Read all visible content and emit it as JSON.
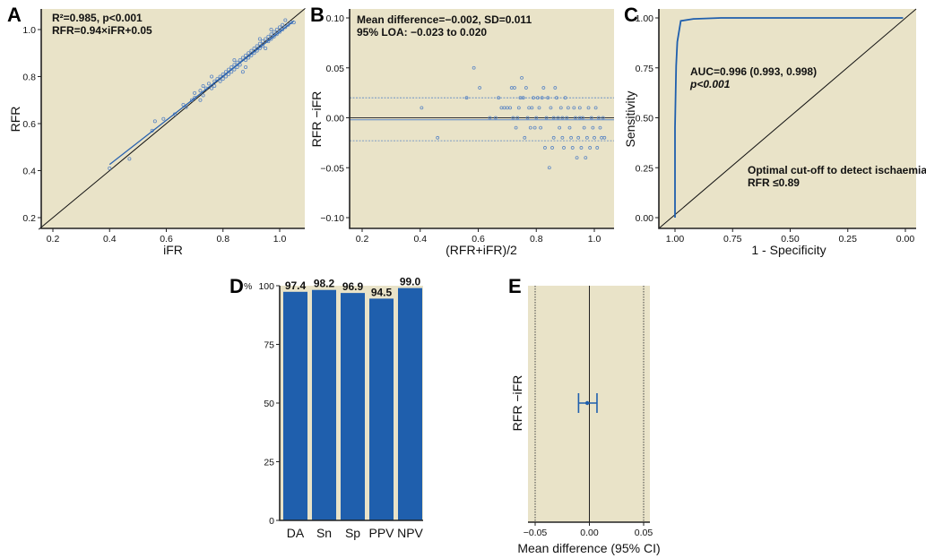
{
  "figure": {
    "colors": {
      "plot_background": "#e9e3c8",
      "series_blue": "#1f5fad",
      "point_blue": "#5b86c4",
      "identity_line": "#111111"
    }
  },
  "chart_data": [
    {
      "panel": "A",
      "type": "scatter",
      "title": "",
      "xlabel": "iFR",
      "ylabel": "RFR",
      "xlim": [
        0.15,
        1.09
      ],
      "ylim": [
        0.17,
        1.09
      ],
      "xticks": [
        "0.2",
        "0.4",
        "0.6",
        "0.8",
        "1.0"
      ],
      "yticks": [
        "0.2",
        "0.4",
        "0.6",
        "0.8",
        "1.0"
      ],
      "annotations": [
        "R²=0.985, p<0.001",
        "RFR=0.94×iFR+0.05"
      ],
      "regression_line": {
        "slope": 0.94,
        "intercept": 0.05,
        "x_range": [
          0.4,
          1.05
        ]
      },
      "identity_line": true,
      "points": [
        [
          0.4,
          0.41
        ],
        [
          0.47,
          0.45
        ],
        [
          0.55,
          0.57
        ],
        [
          0.56,
          0.61
        ],
        [
          0.59,
          0.62
        ],
        [
          0.63,
          0.64
        ],
        [
          0.66,
          0.68
        ],
        [
          0.67,
          0.67
        ],
        [
          0.7,
          0.71
        ],
        [
          0.7,
          0.73
        ],
        [
          0.72,
          0.74
        ],
        [
          0.73,
          0.72
        ],
        [
          0.73,
          0.76
        ],
        [
          0.74,
          0.75
        ],
        [
          0.75,
          0.77
        ],
        [
          0.76,
          0.75
        ],
        [
          0.77,
          0.78
        ],
        [
          0.77,
          0.76
        ],
        [
          0.78,
          0.79
        ],
        [
          0.79,
          0.8
        ],
        [
          0.79,
          0.78
        ],
        [
          0.8,
          0.81
        ],
        [
          0.8,
          0.79
        ],
        [
          0.81,
          0.82
        ],
        [
          0.81,
          0.8
        ],
        [
          0.82,
          0.83
        ],
        [
          0.82,
          0.81
        ],
        [
          0.83,
          0.84
        ],
        [
          0.83,
          0.82
        ],
        [
          0.84,
          0.85
        ],
        [
          0.84,
          0.83
        ],
        [
          0.85,
          0.86
        ],
        [
          0.85,
          0.84
        ],
        [
          0.86,
          0.87
        ],
        [
          0.86,
          0.85
        ],
        [
          0.87,
          0.88
        ],
        [
          0.87,
          0.82
        ],
        [
          0.88,
          0.89
        ],
        [
          0.88,
          0.87
        ],
        [
          0.89,
          0.9
        ],
        [
          0.89,
          0.88
        ],
        [
          0.9,
          0.91
        ],
        [
          0.9,
          0.89
        ],
        [
          0.91,
          0.92
        ],
        [
          0.91,
          0.9
        ],
        [
          0.92,
          0.93
        ],
        [
          0.92,
          0.91
        ],
        [
          0.93,
          0.94
        ],
        [
          0.93,
          0.92
        ],
        [
          0.94,
          0.95
        ],
        [
          0.94,
          0.93
        ],
        [
          0.95,
          0.96
        ],
        [
          0.95,
          0.92
        ],
        [
          0.96,
          0.97
        ],
        [
          0.96,
          0.95
        ],
        [
          0.97,
          0.98
        ],
        [
          0.97,
          0.96
        ],
        [
          0.98,
          0.99
        ],
        [
          0.98,
          0.97
        ],
        [
          0.99,
          1.0
        ],
        [
          0.99,
          0.98
        ],
        [
          1.0,
          1.01
        ],
        [
          1.0,
          0.99
        ],
        [
          1.01,
          1.02
        ],
        [
          1.01,
          1.0
        ],
        [
          1.02,
          1.01
        ],
        [
          1.03,
          1.02
        ],
        [
          1.04,
          1.03
        ],
        [
          1.05,
          1.03
        ],
        [
          0.76,
          0.8
        ],
        [
          0.84,
          0.87
        ],
        [
          0.88,
          0.84
        ],
        [
          0.72,
          0.7
        ],
        [
          0.69,
          0.7
        ],
        [
          0.93,
          0.96
        ],
        [
          0.97,
          1.0
        ],
        [
          1.02,
          1.04
        ]
      ]
    },
    {
      "panel": "B",
      "type": "scatter",
      "title": "",
      "xlabel": "(RFR+iFR)/2",
      "ylabel": "RFR −iFR",
      "xlim": [
        0.15,
        1.09
      ],
      "ylim": [
        -0.11,
        0.11
      ],
      "xticks": [
        "0.2",
        "0.4",
        "0.6",
        "0.8",
        "1.0"
      ],
      "yticks": [
        "0.10",
        "0.05",
        "0.00",
        "−0.05",
        "−0.10"
      ],
      "annotations": [
        "Mean difference=−0.002, SD=0.011",
        "95% LOA: −0.023 to 0.020"
      ],
      "reference_lines": {
        "zero": 0.0,
        "mean": -0.002,
        "upper_loa": 0.02,
        "lower_loa": -0.023
      },
      "points": [
        [
          0.405,
          0.01
        ],
        [
          0.46,
          -0.02
        ],
        [
          0.56,
          0.02
        ],
        [
          0.585,
          0.05
        ],
        [
          0.605,
          0.03
        ],
        [
          0.64,
          0.0
        ],
        [
          0.66,
          0.0
        ],
        [
          0.67,
          0.02
        ],
        [
          0.68,
          0.01
        ],
        [
          0.69,
          0.01
        ],
        [
          0.7,
          0.01
        ],
        [
          0.71,
          0.01
        ],
        [
          0.715,
          0.03
        ],
        [
          0.72,
          0.0
        ],
        [
          0.725,
          0.03
        ],
        [
          0.73,
          -0.01
        ],
        [
          0.735,
          0.0
        ],
        [
          0.74,
          0.01
        ],
        [
          0.745,
          0.02
        ],
        [
          0.75,
          0.04
        ],
        [
          0.755,
          0.02
        ],
        [
          0.76,
          -0.02
        ],
        [
          0.765,
          0.03
        ],
        [
          0.77,
          0.0
        ],
        [
          0.775,
          0.01
        ],
        [
          0.78,
          -0.01
        ],
        [
          0.785,
          0.01
        ],
        [
          0.79,
          0.02
        ],
        [
          0.795,
          -0.01
        ],
        [
          0.8,
          0.0
        ],
        [
          0.805,
          0.02
        ],
        [
          0.81,
          0.01
        ],
        [
          0.815,
          -0.01
        ],
        [
          0.82,
          0.02
        ],
        [
          0.825,
          0.03
        ],
        [
          0.83,
          -0.03
        ],
        [
          0.835,
          0.0
        ],
        [
          0.84,
          0.02
        ],
        [
          0.845,
          -0.05
        ],
        [
          0.85,
          0.01
        ],
        [
          0.855,
          -0.03
        ],
        [
          0.86,
          -0.02
        ],
        [
          0.865,
          0.03
        ],
        [
          0.87,
          0.02
        ],
        [
          0.875,
          0.0
        ],
        [
          0.88,
          -0.01
        ],
        [
          0.885,
          0.01
        ],
        [
          0.89,
          -0.02
        ],
        [
          0.895,
          -0.03
        ],
        [
          0.9,
          0.02
        ],
        [
          0.905,
          0.0
        ],
        [
          0.91,
          0.01
        ],
        [
          0.915,
          -0.01
        ],
        [
          0.92,
          -0.02
        ],
        [
          0.925,
          -0.03
        ],
        [
          0.93,
          0.01
        ],
        [
          0.935,
          0.0
        ],
        [
          0.94,
          -0.04
        ],
        [
          0.945,
          -0.02
        ],
        [
          0.95,
          0.01
        ],
        [
          0.955,
          -0.03
        ],
        [
          0.96,
          0.0
        ],
        [
          0.965,
          -0.01
        ],
        [
          0.97,
          -0.04
        ],
        [
          0.975,
          -0.02
        ],
        [
          0.98,
          0.01
        ],
        [
          0.985,
          -0.03
        ],
        [
          0.99,
          0.0
        ],
        [
          0.995,
          -0.01
        ],
        [
          1.0,
          -0.02
        ],
        [
          1.005,
          0.01
        ],
        [
          1.01,
          -0.03
        ],
        [
          1.015,
          0.0
        ],
        [
          1.02,
          -0.01
        ],
        [
          1.025,
          -0.02
        ],
        [
          1.03,
          0.0
        ],
        [
          1.035,
          -0.02
        ],
        [
          0.86,
          0.0
        ],
        [
          0.89,
          0.0
        ],
        [
          0.95,
          0.0
        ]
      ]
    },
    {
      "panel": "C",
      "type": "line",
      "title": "",
      "xlabel": "1 - Specificity",
      "ylabel": "Sensitivity",
      "xlim": [
        1.03,
        -0.02
      ],
      "ylim": [
        -0.05,
        1.05
      ],
      "xticks": [
        "1.00",
        "0.75",
        "0.50",
        "0.25",
        "0.00"
      ],
      "yticks": [
        "0.00",
        "0.25",
        "0.50",
        "0.75",
        "1.00"
      ],
      "annotations": [
        "AUC=0.996 (0.993, 0.998)",
        "p<0.001",
        "Optimal cut-off to detect ischaemia",
        "RFR ≤0.89"
      ],
      "roc_curve": [
        [
          1.0,
          0.0
        ],
        [
          1.0,
          0.45
        ],
        [
          0.995,
          0.76
        ],
        [
          0.99,
          0.88
        ],
        [
          0.975,
          0.985
        ],
        [
          0.92,
          0.995
        ],
        [
          0.8,
          1.0
        ],
        [
          0.5,
          1.0
        ],
        [
          0.01,
          1.0
        ]
      ],
      "diagonal": true
    },
    {
      "panel": "D",
      "type": "bar",
      "title": "",
      "ylabel": "%",
      "categories": [
        "DA",
        "Sn",
        "Sp",
        "PPV",
        "NPV"
      ],
      "values": [
        97.4,
        98.2,
        96.9,
        94.5,
        99.0
      ],
      "value_labels": [
        "97.4",
        "98.2",
        "96.9",
        "94.5",
        "99.0"
      ],
      "ylim": [
        0,
        100
      ],
      "yticks": [
        "0",
        "25",
        "50",
        "75",
        "100"
      ]
    },
    {
      "panel": "E",
      "type": "scatter",
      "title": "",
      "xlabel": "Mean difference (95% CI)",
      "ylabel": "RFR −iFR",
      "xlim": [
        -0.055,
        0.055
      ],
      "xticks": [
        "−0.05",
        "0.00",
        "0.05"
      ],
      "estimate": {
        "mean": -0.002,
        "ci_low": -0.01,
        "ci_high": 0.007
      },
      "reference_lines": {
        "zero": 0.0,
        "dotted": [
          -0.05,
          0.05
        ]
      }
    }
  ]
}
